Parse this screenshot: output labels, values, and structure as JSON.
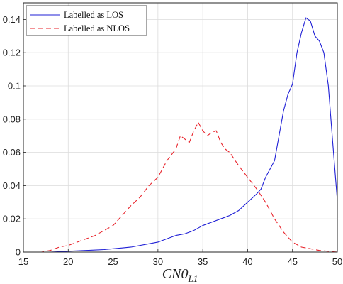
{
  "chart_data": {
    "type": "line",
    "xlabel": "CN0",
    "xlabel_subscript": "L1",
    "ylabel": "",
    "xlim": [
      15,
      50
    ],
    "ylim": [
      0,
      0.15
    ],
    "xticks": [
      15,
      20,
      25,
      30,
      35,
      40,
      45,
      50
    ],
    "yticks": [
      0,
      0.02,
      0.04,
      0.06,
      0.08,
      0.1,
      0.12,
      0.14
    ],
    "xtick_labels": [
      "15",
      "20",
      "25",
      "30",
      "35",
      "40",
      "45",
      "50"
    ],
    "ytick_labels": [
      "0",
      "0.02",
      "0.04",
      "0.06",
      "0.08",
      "0.1",
      "0.12",
      "0.14"
    ],
    "grid": true,
    "legend_position": "top-left",
    "series": [
      {
        "name": "Labelled as LOS",
        "color": "#1f1fd6",
        "dash": "solid",
        "x": [
          15,
          18,
          20,
          22,
          24,
          25,
          26,
          27,
          28,
          29,
          30,
          31,
          32,
          33,
          34,
          35,
          36,
          37,
          38,
          39,
          40,
          41,
          41.5,
          42,
          42.5,
          43,
          43.5,
          44,
          44.5,
          45,
          45.5,
          46,
          46.5,
          47,
          47.5,
          48,
          48.5,
          49,
          49.5,
          50
        ],
        "y": [
          0,
          0,
          0.0005,
          0.001,
          0.0015,
          0.002,
          0.0025,
          0.003,
          0.004,
          0.005,
          0.006,
          0.008,
          0.01,
          0.011,
          0.013,
          0.016,
          0.018,
          0.02,
          0.022,
          0.025,
          0.03,
          0.035,
          0.038,
          0.045,
          0.05,
          0.055,
          0.07,
          0.085,
          0.095,
          0.101,
          0.12,
          0.132,
          0.141,
          0.139,
          0.13,
          0.127,
          0.12,
          0.1,
          0.065,
          0.031
        ]
      },
      {
        "name": "Labelled as NLOS",
        "color": "#e8232b",
        "dash": "dashed",
        "x": [
          15,
          17,
          18,
          19,
          20,
          21,
          22,
          23,
          24,
          25,
          26,
          27,
          28,
          29,
          30,
          31,
          32,
          32.5,
          33,
          33.5,
          34,
          34.5,
          35,
          35.5,
          36,
          36.5,
          37,
          37.5,
          38,
          39,
          40,
          41,
          42,
          43,
          44,
          45,
          46,
          47,
          48,
          49,
          50
        ],
        "y": [
          0,
          0,
          0.001,
          0.003,
          0.004,
          0.006,
          0.008,
          0.01,
          0.013,
          0.016,
          0.022,
          0.028,
          0.033,
          0.04,
          0.045,
          0.055,
          0.062,
          0.07,
          0.068,
          0.066,
          0.073,
          0.078,
          0.073,
          0.07,
          0.072,
          0.073,
          0.066,
          0.062,
          0.06,
          0.052,
          0.045,
          0.038,
          0.03,
          0.02,
          0.012,
          0.006,
          0.003,
          0.002,
          0.001,
          0.0005,
          0
        ]
      }
    ]
  }
}
